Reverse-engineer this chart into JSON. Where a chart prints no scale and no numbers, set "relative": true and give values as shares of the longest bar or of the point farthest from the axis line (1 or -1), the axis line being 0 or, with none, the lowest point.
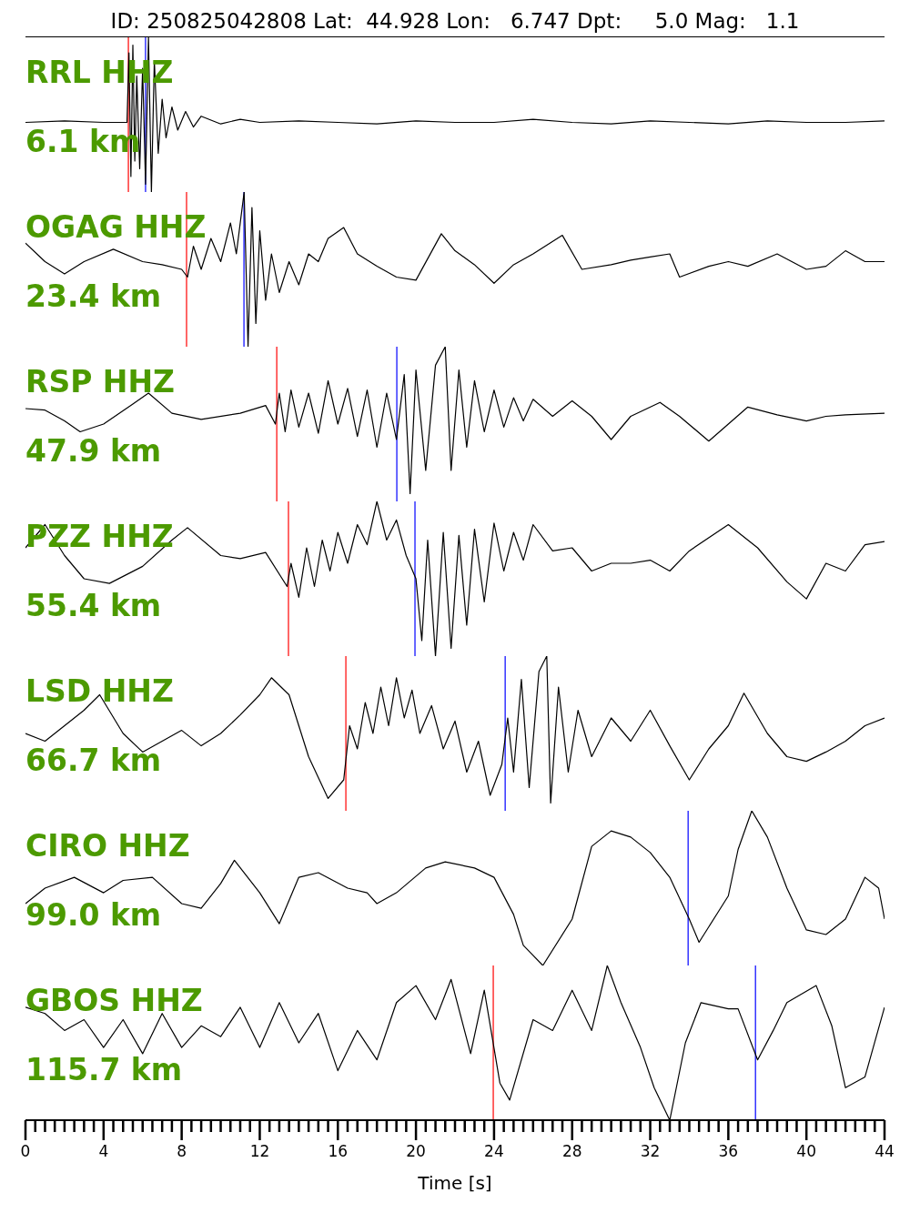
{
  "chart_data": [
    {
      "type": "line",
      "relative": true,
      "title": "ID: 250825042808 Lat:  44.928 Lon:   6.747 Dpt:     5.0 Mag:   1.1",
      "annotations": [
        "RRL HHZ",
        "6.1 km"
      ],
      "xlim": [
        0,
        44
      ],
      "tick_labels": false,
      "color": "#000000",
      "x": [
        0,
        2,
        4,
        5.2,
        5.3,
        5.4,
        5.5,
        5.6,
        5.7,
        5.85,
        6.0,
        6.15,
        6.3,
        6.45,
        6.6,
        6.8,
        7.0,
        7.2,
        7.5,
        7.8,
        8.2,
        8.6,
        9,
        10,
        11,
        12,
        14,
        16,
        18,
        20,
        22,
        24,
        26,
        28,
        30,
        32,
        34,
        36,
        38,
        40,
        42,
        44
      ],
      "values": [
        0.45,
        0.46,
        0.45,
        0.45,
        0.9,
        0.1,
        0.95,
        0.2,
        0.75,
        0.15,
        0.8,
        0.05,
        1.0,
        0.0,
        0.85,
        0.25,
        0.6,
        0.35,
        0.55,
        0.4,
        0.52,
        0.42,
        0.49,
        0.44,
        0.47,
        0.45,
        0.46,
        0.45,
        0.44,
        0.46,
        0.45,
        0.45,
        0.47,
        0.45,
        0.44,
        0.46,
        0.45,
        0.44,
        0.46,
        0.45,
        0.45,
        0.46
      ],
      "ref_lines": [
        {
          "axis": "x",
          "value": 5.27,
          "color": "#ff0000"
        },
        {
          "axis": "x",
          "value": 6.15,
          "color": "#0000ff"
        }
      ]
    },
    {
      "type": "line",
      "relative": true,
      "annotations": [
        "OGAG HHZ",
        "23.4 km"
      ],
      "xlim": [
        0,
        44
      ],
      "tick_labels": false,
      "color": "#000000",
      "x": [
        0,
        1,
        2,
        3,
        4.5,
        6,
        7,
        8,
        8.3,
        8.6,
        9,
        9.5,
        10,
        10.5,
        10.8,
        11.2,
        11.4,
        11.6,
        11.8,
        12.0,
        12.3,
        12.6,
        13,
        13.5,
        14,
        14.5,
        15,
        15.5,
        16.3,
        17,
        18,
        19,
        20,
        21.3,
        22,
        23,
        24,
        25,
        26,
        27.5,
        28.5,
        30,
        31,
        32,
        33,
        33.5,
        35,
        36,
        37,
        38.5,
        40,
        41,
        42,
        43,
        44
      ],
      "values": [
        0.67,
        0.55,
        0.47,
        0.55,
        0.63,
        0.55,
        0.53,
        0.5,
        0.45,
        0.65,
        0.5,
        0.7,
        0.55,
        0.8,
        0.6,
        1.0,
        0.0,
        0.9,
        0.15,
        0.75,
        0.3,
        0.6,
        0.35,
        0.55,
        0.4,
        0.6,
        0.55,
        0.7,
        0.77,
        0.6,
        0.52,
        0.45,
        0.43,
        0.73,
        0.62,
        0.53,
        0.41,
        0.53,
        0.6,
        0.72,
        0.5,
        0.53,
        0.56,
        0.58,
        0.6,
        0.45,
        0.52,
        0.55,
        0.52,
        0.6,
        0.5,
        0.52,
        0.62,
        0.55,
        0.55
      ],
      "ref_lines": [
        {
          "axis": "x",
          "value": 8.25,
          "color": "#ff0000"
        },
        {
          "axis": "x",
          "value": 11.19,
          "color": "#0000ff"
        }
      ]
    },
    {
      "type": "line",
      "relative": true,
      "annotations": [
        "RSP HHZ",
        "47.9 km"
      ],
      "xlim": [
        0,
        44
      ],
      "tick_labels": false,
      "color": "#000000",
      "x": [
        0,
        1,
        2,
        2.8,
        4,
        5.5,
        6.3,
        7.5,
        9,
        11,
        12.3,
        12.8,
        13.0,
        13.3,
        13.6,
        14,
        14.5,
        15,
        15.5,
        16,
        16.5,
        17,
        17.5,
        18,
        18.5,
        19,
        19.4,
        19.7,
        20,
        20.5,
        21,
        21.5,
        21.8,
        22.2,
        22.6,
        23,
        23.5,
        24,
        24.5,
        25,
        25.5,
        26,
        27,
        28,
        29,
        30,
        31,
        32.5,
        33.5,
        35,
        36,
        37,
        38.5,
        40,
        41,
        42,
        44
      ],
      "values": [
        0.6,
        0.59,
        0.52,
        0.45,
        0.5,
        0.63,
        0.7,
        0.57,
        0.53,
        0.57,
        0.62,
        0.5,
        0.7,
        0.45,
        0.72,
        0.48,
        0.7,
        0.44,
        0.78,
        0.5,
        0.73,
        0.42,
        0.72,
        0.35,
        0.7,
        0.4,
        0.82,
        0.05,
        0.85,
        0.2,
        0.88,
        1.0,
        0.2,
        0.85,
        0.35,
        0.78,
        0.45,
        0.72,
        0.48,
        0.67,
        0.52,
        0.66,
        0.55,
        0.65,
        0.55,
        0.4,
        0.55,
        0.64,
        0.55,
        0.39,
        0.5,
        0.61,
        0.56,
        0.52,
        0.55,
        0.56,
        0.57
      ],
      "ref_lines": [
        {
          "axis": "x",
          "value": 12.87,
          "color": "#ff0000"
        },
        {
          "axis": "x",
          "value": 19.02,
          "color": "#0000ff"
        }
      ]
    },
    {
      "type": "line",
      "relative": true,
      "annotations": [
        "PZZ HHZ",
        "55.4 km"
      ],
      "xlim": [
        0,
        44
      ],
      "tick_labels": false,
      "color": "#000000",
      "x": [
        0,
        1,
        2,
        3,
        4.3,
        6,
        7.5,
        8.3,
        10,
        11,
        12.3,
        13.4,
        13.6,
        14,
        14.4,
        14.8,
        15.2,
        15.6,
        16,
        16.5,
        17,
        17.5,
        18,
        18.5,
        19,
        19.5,
        20,
        20.3,
        20.6,
        21,
        21.4,
        21.8,
        22.2,
        22.6,
        23,
        23.5,
        24,
        24.5,
        25,
        25.5,
        26,
        27,
        28,
        29,
        30,
        31,
        32,
        33,
        34,
        36,
        37.5,
        39,
        40,
        41,
        42,
        43,
        44
      ],
      "values": [
        0.7,
        0.85,
        0.65,
        0.5,
        0.47,
        0.58,
        0.75,
        0.83,
        0.65,
        0.63,
        0.67,
        0.45,
        0.6,
        0.38,
        0.7,
        0.45,
        0.75,
        0.55,
        0.8,
        0.6,
        0.85,
        0.72,
        1.0,
        0.75,
        0.88,
        0.65,
        0.5,
        0.1,
        0.75,
        0.0,
        0.8,
        0.05,
        0.78,
        0.2,
        0.82,
        0.35,
        0.86,
        0.55,
        0.8,
        0.62,
        0.85,
        0.68,
        0.7,
        0.55,
        0.6,
        0.6,
        0.62,
        0.55,
        0.68,
        0.85,
        0.7,
        0.48,
        0.37,
        0.6,
        0.55,
        0.72,
        0.74
      ],
      "ref_lines": [
        {
          "axis": "x",
          "value": 13.47,
          "color": "#ff0000"
        },
        {
          "axis": "x",
          "value": 19.95,
          "color": "#0000ff"
        }
      ]
    },
    {
      "type": "line",
      "relative": true,
      "annotations": [
        "LSD HHZ",
        "66.7 km"
      ],
      "xlim": [
        0,
        44
      ],
      "tick_labels": false,
      "color": "#000000",
      "x": [
        0,
        1,
        2,
        3,
        3.8,
        5,
        6,
        7,
        8,
        9,
        10,
        11,
        12,
        12.6,
        13.5,
        14.5,
        15.5,
        16.3,
        16.6,
        17,
        17.4,
        17.8,
        18.2,
        18.6,
        19,
        19.4,
        19.8,
        20.2,
        20.8,
        21.4,
        22,
        22.6,
        23.2,
        23.8,
        24.4,
        24.7,
        25,
        25.4,
        25.8,
        26.3,
        26.7,
        26.9,
        27.3,
        27.8,
        28.3,
        29,
        30,
        31,
        32,
        33,
        34,
        35,
        36,
        36.8,
        38,
        39,
        40,
        41,
        42,
        43,
        44
      ],
      "values": [
        0.5,
        0.45,
        0.55,
        0.65,
        0.75,
        0.5,
        0.38,
        0.45,
        0.52,
        0.42,
        0.5,
        0.62,
        0.75,
        0.86,
        0.75,
        0.35,
        0.08,
        0.2,
        0.55,
        0.4,
        0.7,
        0.5,
        0.8,
        0.55,
        0.86,
        0.6,
        0.78,
        0.5,
        0.68,
        0.4,
        0.58,
        0.25,
        0.45,
        0.1,
        0.3,
        0.6,
        0.25,
        0.85,
        0.15,
        0.9,
        1.0,
        0.05,
        0.8,
        0.25,
        0.65,
        0.35,
        0.6,
        0.45,
        0.65,
        0.42,
        0.2,
        0.4,
        0.55,
        0.76,
        0.5,
        0.35,
        0.32,
        0.38,
        0.45,
        0.55,
        0.6
      ],
      "ref_lines": [
        {
          "axis": "x",
          "value": 16.41,
          "color": "#ff0000"
        },
        {
          "axis": "x",
          "value": 24.57,
          "color": "#0000ff"
        }
      ]
    },
    {
      "type": "line",
      "relative": true,
      "annotations": [
        "CIRO HHZ",
        "99.0 km"
      ],
      "xlim": [
        0,
        44
      ],
      "tick_labels": false,
      "color": "#000000",
      "x": [
        0,
        1,
        2.5,
        4,
        5,
        6.5,
        8,
        9,
        10,
        10.7,
        12,
        13,
        14,
        15,
        16.5,
        17.5,
        18,
        19,
        20.5,
        21.5,
        23,
        24,
        25,
        25.5,
        26.5,
        28,
        29,
        30,
        31,
        32,
        33,
        34,
        34.5,
        35,
        35.5,
        36,
        36.5,
        37.2,
        38,
        39,
        40,
        41,
        42,
        43,
        43.7,
        44
      ],
      "values": [
        0.4,
        0.5,
        0.57,
        0.47,
        0.55,
        0.57,
        0.4,
        0.37,
        0.53,
        0.68,
        0.47,
        0.27,
        0.57,
        0.6,
        0.5,
        0.47,
        0.4,
        0.47,
        0.63,
        0.67,
        0.63,
        0.57,
        0.33,
        0.13,
        0.0,
        0.3,
        0.77,
        0.87,
        0.83,
        0.73,
        0.57,
        0.3,
        0.15,
        0.25,
        0.35,
        0.45,
        0.75,
        1.0,
        0.83,
        0.5,
        0.23,
        0.2,
        0.3,
        0.57,
        0.5,
        0.3
      ],
      "ref_lines": [
        {
          "axis": "x",
          "value": 33.94,
          "color": "#0000ff"
        }
      ]
    },
    {
      "type": "line",
      "relative": true,
      "annotations": [
        "GBOS HHZ",
        "115.7 km"
      ],
      "xlabel": "Time [s]",
      "xlim": [
        0,
        44
      ],
      "tick_labels": "x",
      "color": "#000000",
      "xticks": [
        0,
        {
          "value": 0.5,
          "label": null
        },
        {
          "value": 1,
          "label": null
        },
        {
          "value": 1.5,
          "label": null
        },
        {
          "value": 2,
          "label": null
        },
        {
          "value": 2.5,
          "label": null
        },
        {
          "value": 3,
          "label": null
        },
        {
          "value": 3.5,
          "label": null
        },
        4,
        {
          "value": 4.5,
          "label": null
        },
        {
          "value": 5,
          "label": null
        },
        {
          "value": 5.5,
          "label": null
        },
        {
          "value": 6,
          "label": null
        },
        {
          "value": 6.5,
          "label": null
        },
        {
          "value": 7,
          "label": null
        },
        {
          "value": 7.5,
          "label": null
        },
        8,
        {
          "value": 8.5,
          "label": null
        },
        {
          "value": 9,
          "label": null
        },
        {
          "value": 9.5,
          "label": null
        },
        {
          "value": 10,
          "label": null
        },
        {
          "value": 10.5,
          "label": null
        },
        {
          "value": 11,
          "label": null
        },
        {
          "value": 11.5,
          "label": null
        },
        12,
        {
          "value": 12.5,
          "label": null
        },
        {
          "value": 13,
          "label": null
        },
        {
          "value": 13.5,
          "label": null
        },
        {
          "value": 14,
          "label": null
        },
        {
          "value": 14.5,
          "label": null
        },
        {
          "value": 15,
          "label": null
        },
        {
          "value": 15.5,
          "label": null
        },
        16,
        {
          "value": 16.5,
          "label": null
        },
        {
          "value": 17,
          "label": null
        },
        {
          "value": 17.5,
          "label": null
        },
        {
          "value": 18,
          "label": null
        },
        {
          "value": 18.5,
          "label": null
        },
        {
          "value": 19,
          "label": null
        },
        {
          "value": 19.5,
          "label": null
        },
        20,
        {
          "value": 20.5,
          "label": null
        },
        {
          "value": 21,
          "label": null
        },
        {
          "value": 21.5,
          "label": null
        },
        {
          "value": 22,
          "label": null
        },
        {
          "value": 22.5,
          "label": null
        },
        {
          "value": 23,
          "label": null
        },
        {
          "value": 23.5,
          "label": null
        },
        24,
        {
          "value": 24.5,
          "label": null
        },
        {
          "value": 25,
          "label": null
        },
        {
          "value": 25.5,
          "label": null
        },
        {
          "value": 26,
          "label": null
        },
        {
          "value": 26.5,
          "label": null
        },
        {
          "value": 27,
          "label": null
        },
        {
          "value": 27.5,
          "label": null
        },
        28,
        {
          "value": 28.5,
          "label": null
        },
        {
          "value": 29,
          "label": null
        },
        {
          "value": 29.5,
          "label": null
        },
        {
          "value": 30,
          "label": null
        },
        {
          "value": 30.5,
          "label": null
        },
        {
          "value": 31,
          "label": null
        },
        {
          "value": 31.5,
          "label": null
        },
        32,
        {
          "value": 32.5,
          "label": null
        },
        {
          "value": 33,
          "label": null
        },
        {
          "value": 33.5,
          "label": null
        },
        {
          "value": 34,
          "label": null
        },
        {
          "value": 34.5,
          "label": null
        },
        {
          "value": 35,
          "label": null
        },
        {
          "value": 35.5,
          "label": null
        },
        36,
        {
          "value": 36.5,
          "label": null
        },
        {
          "value": 37,
          "label": null
        },
        {
          "value": 37.5,
          "label": null
        },
        {
          "value": 38,
          "label": null
        },
        {
          "value": 38.5,
          "label": null
        },
        {
          "value": 39,
          "label": null
        },
        {
          "value": 39.5,
          "label": null
        },
        40,
        {
          "value": 40.5,
          "label": null
        },
        {
          "value": 41,
          "label": null
        },
        {
          "value": 41.5,
          "label": null
        },
        {
          "value": 42,
          "label": null
        },
        {
          "value": 42.5,
          "label": null
        },
        {
          "value": 43,
          "label": null
        },
        {
          "value": 43.5,
          "label": null
        },
        44
      ],
      "x": [
        0,
        1,
        2,
        3,
        4,
        5,
        6,
        7,
        8,
        9,
        10,
        11,
        12,
        13,
        14,
        15,
        16,
        17,
        18,
        19,
        20,
        21,
        21.8,
        22.8,
        23.5,
        24.3,
        24.8,
        26,
        27,
        28,
        29,
        29.8,
        30.5,
        31.5,
        32.2,
        33,
        33.8,
        34.6,
        36,
        36.5,
        37.5,
        38.3,
        39,
        40.5,
        41.3,
        42,
        43,
        44
      ],
      "values": [
        0.73,
        0.69,
        0.58,
        0.65,
        0.47,
        0.65,
        0.43,
        0.69,
        0.47,
        0.61,
        0.54,
        0.73,
        0.47,
        0.76,
        0.5,
        0.69,
        0.32,
        0.58,
        0.39,
        0.76,
        0.87,
        0.65,
        0.91,
        0.43,
        0.84,
        0.24,
        0.13,
        0.65,
        0.58,
        0.84,
        0.58,
        1.0,
        0.76,
        0.47,
        0.21,
        0.0,
        0.5,
        0.76,
        0.72,
        0.72,
        0.39,
        0.58,
        0.76,
        0.87,
        0.61,
        0.21,
        0.28,
        0.73
      ],
      "ref_lines": [
        {
          "axis": "x",
          "value": 23.96,
          "color": "#ff0000"
        },
        {
          "axis": "x",
          "value": 37.39,
          "color": "#0000ff"
        }
      ]
    }
  ]
}
